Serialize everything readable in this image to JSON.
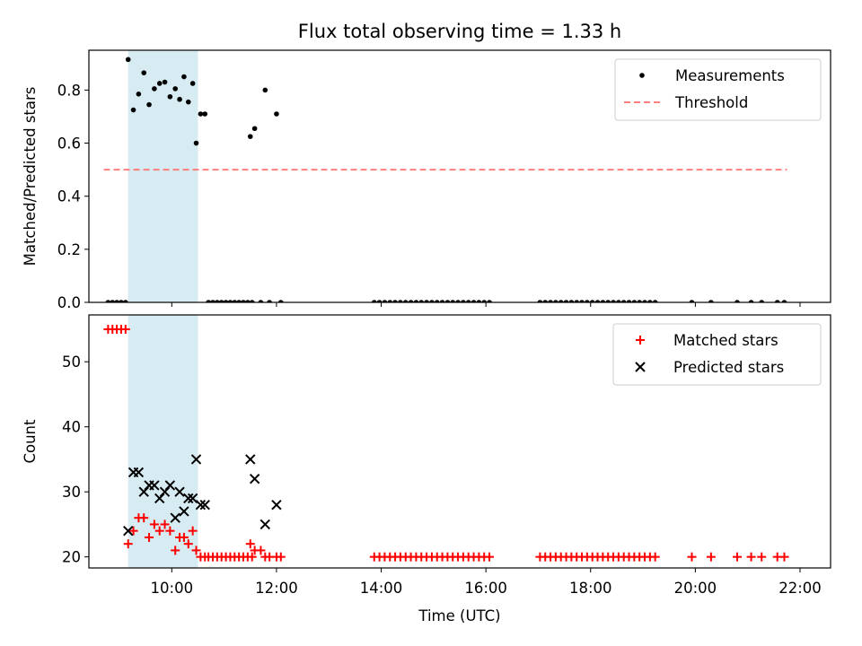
{
  "chart_data": [
    {
      "type": "scatter",
      "title": "Flux total observing time = 1.33 h",
      "xlabel": "",
      "ylabel": "Matched/Predicted stars",
      "xlim": [
        "08:25",
        "22:35"
      ],
      "ylim": [
        0,
        0.95
      ],
      "yticks": [
        0.0,
        0.2,
        0.4,
        0.6,
        0.8
      ],
      "ytick_labels": [
        "0.0",
        "0.2",
        "0.4",
        "0.6",
        "0.8"
      ],
      "xticks": [
        "10:00",
        "12:00",
        "14:00",
        "16:00",
        "18:00",
        "20:00",
        "22:00"
      ],
      "show_xtick_labels": false,
      "grid": false,
      "legend_position": "top-right",
      "shaded_interval": {
        "x": [
          "09:10",
          "10:30"
        ],
        "color": "#add8e6"
      },
      "series": [
        {
          "name": "Measurements",
          "marker": "dot",
          "color": "#000000",
          "points": [
            [
              "08:47",
              0
            ],
            [
              "08:52",
              0
            ],
            [
              "08:57",
              0
            ],
            [
              "09:02",
              0
            ],
            [
              "09:07",
              0
            ],
            [
              "09:10",
              0.915
            ],
            [
              "09:16",
              0.725
            ],
            [
              "09:22",
              0.785
            ],
            [
              "09:28",
              0.865
            ],
            [
              "09:34",
              0.745
            ],
            [
              "09:40",
              0.805
            ],
            [
              "09:46",
              0.825
            ],
            [
              "09:52",
              0.83
            ],
            [
              "09:58",
              0.775
            ],
            [
              "10:04",
              0.805
            ],
            [
              "10:09",
              0.765
            ],
            [
              "10:14",
              0.85
            ],
            [
              "10:19",
              0.755
            ],
            [
              "10:24",
              0.825
            ],
            [
              "10:28",
              0.6
            ],
            [
              "10:33",
              0.71
            ],
            [
              "10:38",
              0.71
            ],
            [
              "10:42",
              0
            ],
            [
              "10:47",
              0
            ],
            [
              "10:52",
              0
            ],
            [
              "10:57",
              0
            ],
            [
              "11:02",
              0
            ],
            [
              "11:07",
              0
            ],
            [
              "11:12",
              0
            ],
            [
              "11:17",
              0
            ],
            [
              "11:22",
              0
            ],
            [
              "11:27",
              0
            ],
            [
              "11:32",
              0
            ],
            [
              "11:30",
              0.625
            ],
            [
              "11:35",
              0.655
            ],
            [
              "11:42",
              0
            ],
            [
              "11:47",
              0.8
            ],
            [
              "11:52",
              0
            ],
            [
              "12:00",
              0.71
            ],
            [
              "12:05",
              0
            ],
            [
              "13:52",
              0
            ],
            [
              "13:58",
              0
            ],
            [
              "14:04",
              0
            ],
            [
              "14:10",
              0
            ],
            [
              "14:16",
              0
            ],
            [
              "14:22",
              0
            ],
            [
              "14:28",
              0
            ],
            [
              "14:34",
              0
            ],
            [
              "14:40",
              0
            ],
            [
              "14:46",
              0
            ],
            [
              "14:52",
              0
            ],
            [
              "14:58",
              0
            ],
            [
              "15:04",
              0
            ],
            [
              "15:10",
              0
            ],
            [
              "15:16",
              0
            ],
            [
              "15:22",
              0
            ],
            [
              "15:28",
              0
            ],
            [
              "15:34",
              0
            ],
            [
              "15:40",
              0
            ],
            [
              "15:46",
              0
            ],
            [
              "15:52",
              0
            ],
            [
              "15:58",
              0
            ],
            [
              "16:04",
              0
            ],
            [
              "17:02",
              0
            ],
            [
              "17:08",
              0
            ],
            [
              "17:14",
              0
            ],
            [
              "17:20",
              0
            ],
            [
              "17:26",
              0
            ],
            [
              "17:32",
              0
            ],
            [
              "17:38",
              0
            ],
            [
              "17:44",
              0
            ],
            [
              "17:50",
              0
            ],
            [
              "17:56",
              0
            ],
            [
              "18:02",
              0
            ],
            [
              "18:08",
              0
            ],
            [
              "18:14",
              0
            ],
            [
              "18:20",
              0
            ],
            [
              "18:26",
              0
            ],
            [
              "18:32",
              0
            ],
            [
              "18:38",
              0
            ],
            [
              "18:44",
              0
            ],
            [
              "18:50",
              0
            ],
            [
              "18:56",
              0
            ],
            [
              "19:02",
              0
            ],
            [
              "19:08",
              0
            ],
            [
              "19:14",
              0
            ],
            [
              "19:56",
              0
            ],
            [
              "20:18",
              0
            ],
            [
              "20:48",
              0
            ],
            [
              "21:04",
              0
            ],
            [
              "21:16",
              0
            ],
            [
              "21:34",
              0
            ],
            [
              "21:42",
              0
            ]
          ]
        },
        {
          "name": "Threshold",
          "type": "line",
          "dashed": true,
          "color": "#ff7f7f",
          "x": [
            "08:42",
            "21:45"
          ],
          "y": [
            0.5,
            0.5
          ]
        }
      ]
    },
    {
      "type": "scatter",
      "title": "",
      "xlabel": "Time (UTC)",
      "ylabel": "Count",
      "xlim": [
        "08:25",
        "22:35"
      ],
      "ylim": [
        18.3,
        57.2
      ],
      "yticks": [
        20,
        30,
        40,
        50
      ],
      "ytick_labels": [
        "20",
        "30",
        "40",
        "50"
      ],
      "xticks": [
        "10:00",
        "12:00",
        "14:00",
        "16:00",
        "18:00",
        "20:00",
        "22:00"
      ],
      "xtick_labels": [
        "10:00",
        "12:00",
        "14:00",
        "16:00",
        "18:00",
        "20:00",
        "22:00"
      ],
      "grid": false,
      "legend_position": "top-right",
      "shaded_interval": {
        "x": [
          "09:10",
          "10:30"
        ],
        "color": "#add8e6"
      },
      "series": [
        {
          "name": "Matched stars",
          "marker": "plus",
          "color": "#ff0000",
          "points": [
            [
              "08:47",
              55
            ],
            [
              "08:52",
              55
            ],
            [
              "08:57",
              55
            ],
            [
              "09:02",
              55
            ],
            [
              "09:07",
              55
            ],
            [
              "09:10",
              22
            ],
            [
              "09:16",
              24
            ],
            [
              "09:22",
              26
            ],
            [
              "09:28",
              26
            ],
            [
              "09:34",
              23
            ],
            [
              "09:40",
              25
            ],
            [
              "09:46",
              24
            ],
            [
              "09:52",
              25
            ],
            [
              "09:58",
              24
            ],
            [
              "10:04",
              21
            ],
            [
              "10:09",
              23
            ],
            [
              "10:14",
              23
            ],
            [
              "10:19",
              22
            ],
            [
              "10:24",
              24
            ],
            [
              "10:28",
              21
            ],
            [
              "10:33",
              20
            ],
            [
              "10:38",
              20
            ],
            [
              "10:42",
              20
            ],
            [
              "10:47",
              20
            ],
            [
              "10:52",
              20
            ],
            [
              "10:57",
              20
            ],
            [
              "11:02",
              20
            ],
            [
              "11:07",
              20
            ],
            [
              "11:12",
              20
            ],
            [
              "11:17",
              20
            ],
            [
              "11:22",
              20
            ],
            [
              "11:27",
              20
            ],
            [
              "11:32",
              20
            ],
            [
              "11:30",
              22
            ],
            [
              "11:35",
              21
            ],
            [
              "11:42",
              21
            ],
            [
              "11:47",
              20
            ],
            [
              "11:52",
              20
            ],
            [
              "12:00",
              20
            ],
            [
              "12:05",
              20
            ],
            [
              "13:52",
              20
            ],
            [
              "13:58",
              20
            ],
            [
              "14:04",
              20
            ],
            [
              "14:10",
              20
            ],
            [
              "14:16",
              20
            ],
            [
              "14:22",
              20
            ],
            [
              "14:28",
              20
            ],
            [
              "14:34",
              20
            ],
            [
              "14:40",
              20
            ],
            [
              "14:46",
              20
            ],
            [
              "14:52",
              20
            ],
            [
              "14:58",
              20
            ],
            [
              "15:04",
              20
            ],
            [
              "15:10",
              20
            ],
            [
              "15:16",
              20
            ],
            [
              "15:22",
              20
            ],
            [
              "15:28",
              20
            ],
            [
              "15:34",
              20
            ],
            [
              "15:40",
              20
            ],
            [
              "15:46",
              20
            ],
            [
              "15:52",
              20
            ],
            [
              "15:58",
              20
            ],
            [
              "16:04",
              20
            ],
            [
              "17:02",
              20
            ],
            [
              "17:08",
              20
            ],
            [
              "17:14",
              20
            ],
            [
              "17:20",
              20
            ],
            [
              "17:26",
              20
            ],
            [
              "17:32",
              20
            ],
            [
              "17:38",
              20
            ],
            [
              "17:44",
              20
            ],
            [
              "17:50",
              20
            ],
            [
              "17:56",
              20
            ],
            [
              "18:02",
              20
            ],
            [
              "18:08",
              20
            ],
            [
              "18:14",
              20
            ],
            [
              "18:20",
              20
            ],
            [
              "18:26",
              20
            ],
            [
              "18:32",
              20
            ],
            [
              "18:38",
              20
            ],
            [
              "18:44",
              20
            ],
            [
              "18:50",
              20
            ],
            [
              "18:56",
              20
            ],
            [
              "19:02",
              20
            ],
            [
              "19:08",
              20
            ],
            [
              "19:14",
              20
            ],
            [
              "19:56",
              20
            ],
            [
              "20:18",
              20
            ],
            [
              "20:48",
              20
            ],
            [
              "21:04",
              20
            ],
            [
              "21:16",
              20
            ],
            [
              "21:34",
              20
            ],
            [
              "21:42",
              20
            ]
          ]
        },
        {
          "name": "Predicted stars",
          "marker": "x",
          "color": "#000000",
          "points": [
            [
              "09:10",
              24
            ],
            [
              "09:16",
              33
            ],
            [
              "09:22",
              33
            ],
            [
              "09:28",
              30
            ],
            [
              "09:34",
              31
            ],
            [
              "09:40",
              31
            ],
            [
              "09:46",
              29
            ],
            [
              "09:52",
              30
            ],
            [
              "09:58",
              31
            ],
            [
              "10:04",
              26
            ],
            [
              "10:09",
              30
            ],
            [
              "10:14",
              27
            ],
            [
              "10:19",
              29
            ],
            [
              "10:24",
              29
            ],
            [
              "10:28",
              35
            ],
            [
              "10:33",
              28
            ],
            [
              "10:38",
              28
            ],
            [
              "11:30",
              35
            ],
            [
              "11:35",
              32
            ],
            [
              "11:47",
              25
            ],
            [
              "12:00",
              28
            ]
          ]
        }
      ]
    }
  ]
}
